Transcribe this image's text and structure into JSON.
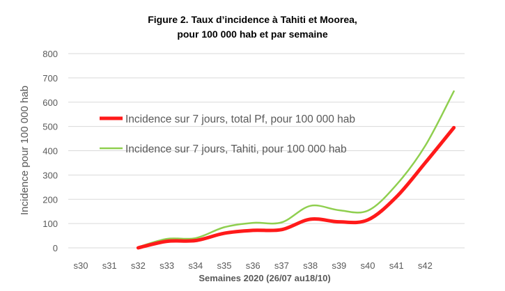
{
  "chart_data": {
    "type": "line",
    "title_bold": "Figure 2.",
    "title_rest": " Taux d’incidence à Tahiti et Moorea,",
    "title_line2": "pour 100 000 hab et par semaine",
    "xlabel": "Semaines 2020 (26/07 au18/10)",
    "ylabel": "Incidence pour 100 000 hab",
    "ylim": [
      0,
      800
    ],
    "yticks": [
      0,
      100,
      200,
      300,
      400,
      500,
      600,
      700,
      800
    ],
    "categories": [
      "s30",
      "s31",
      "s32",
      "s33",
      "s34",
      "s35",
      "s36",
      "s37",
      "s38",
      "s39",
      "s40",
      "s41",
      "s42",
      ""
    ],
    "grid": true,
    "legend_position": "center-left",
    "series": [
      {
        "name": "Incidence sur 7 jours, total Pf, pour 100 000 hab",
        "color": "#ff1a1a",
        "values": [
          null,
          null,
          0,
          27,
          30,
          60,
          72,
          75,
          118,
          107,
          115,
          210,
          350,
          495
        ]
      },
      {
        "name": "Incidence sur 7 jours, Tahiti, pour 100 000 hab",
        "color": "#8fcf4f",
        "values": [
          null,
          null,
          3,
          37,
          40,
          85,
          103,
          105,
          173,
          155,
          153,
          260,
          420,
          645
        ]
      }
    ]
  }
}
